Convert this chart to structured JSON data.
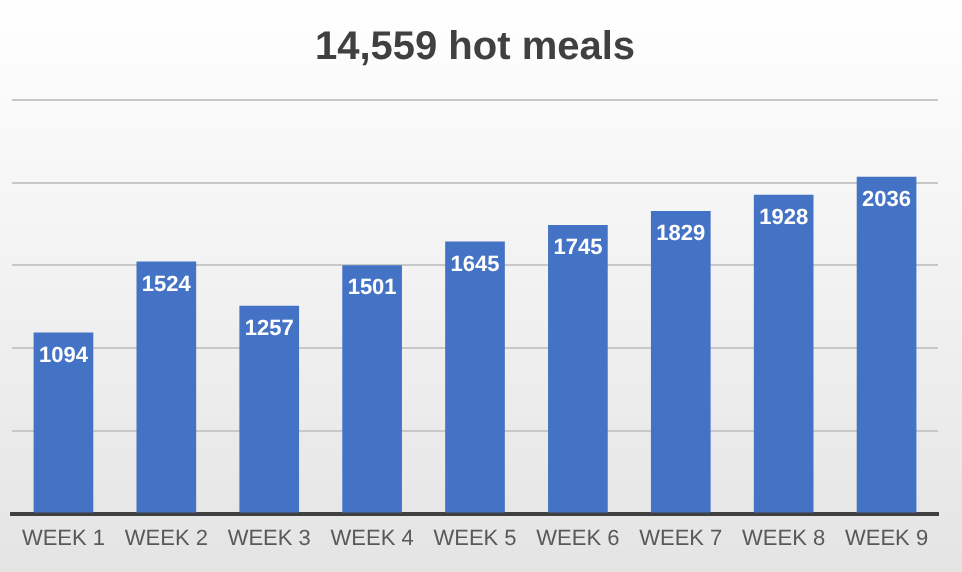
{
  "chart_data": {
    "type": "bar",
    "title": "14,559 hot meals",
    "categories": [
      "WEEK 1",
      "WEEK 2",
      "WEEK 3",
      "WEEK 4",
      "WEEK 5",
      "WEEK 6",
      "WEEK 7",
      "WEEK 8",
      "WEEK 9"
    ],
    "values": [
      1094,
      1524,
      1257,
      1501,
      1645,
      1745,
      1829,
      1928,
      2036
    ],
    "color": "#4472c4",
    "ylim": [
      0,
      2500
    ],
    "yticks": [
      {
        "value": 0,
        "label": null
      },
      {
        "value": 500,
        "label": null
      },
      {
        "value": 1000,
        "label": null
      },
      {
        "value": 1500,
        "label": null
      },
      {
        "value": 2000,
        "label": null
      },
      {
        "value": 2500,
        "label": null
      }
    ],
    "tick_labels": "x",
    "grid": "y",
    "data_labels": true
  }
}
